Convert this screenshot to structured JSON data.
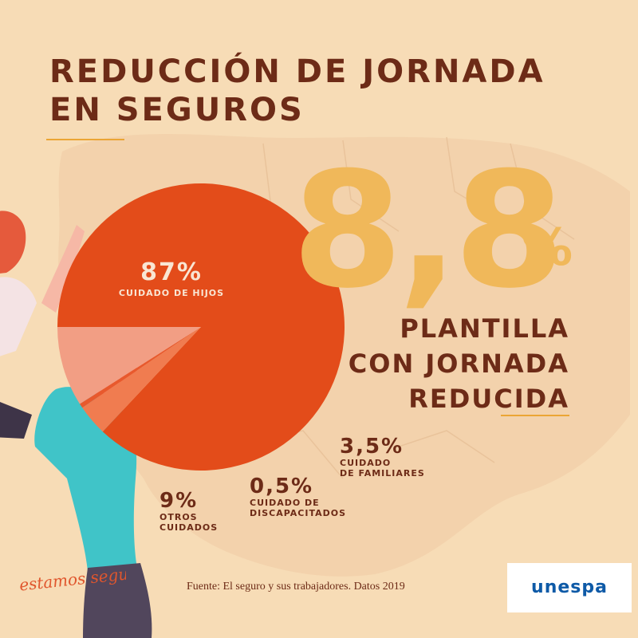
{
  "title": {
    "line1": "REDUCCIÓN DE JORNADA",
    "line2": "EN SEGUROS"
  },
  "headline": {
    "value": "8,8",
    "unit": "%",
    "line1": "PLANTILLA",
    "line2": "CON JORNADA",
    "line3": "REDUCIDA"
  },
  "labels": {
    "hijos": {
      "value": "87%",
      "name": "CUIDADO DE HIJOS"
    },
    "otros": {
      "value": "9%",
      "name1": "OTROS",
      "name2": "CUIDADOS"
    },
    "discap": {
      "value": "0,5%",
      "name1": "CUIDADO DE",
      "name2": "DISCAPACITADOS"
    },
    "familiares": {
      "value": "3,5%",
      "name1": "CUIDADO",
      "name2": "DE FAMILIARES"
    }
  },
  "source": "Fuente: El seguro y sus trabajadores. Datos 2019",
  "brand": {
    "tagline": "estamos seguros",
    "logo": "unespa"
  },
  "colors": {
    "background": "#f7dcb6",
    "map": "#f3d2ac",
    "title": "#6d2b17",
    "accent": "#f0b85a",
    "slice_hijos": "#e34c1a",
    "slice_otros": "#f29e84",
    "slice_discap": "#e8592d",
    "slice_familiares": "#f07c50"
  },
  "chart_data": {
    "type": "pie",
    "start_angle_deg": 180,
    "direction": "clockwise",
    "slices": [
      {
        "label": "CUIDADO DE HIJOS",
        "value": 87,
        "color": "#e34c1a"
      },
      {
        "label": "CUIDADO DE FAMILIARES",
        "value": 3.5,
        "color": "#f07c50"
      },
      {
        "label": "CUIDADO DE DISCAPACITADOS",
        "value": 0.5,
        "color": "#e8592d"
      },
      {
        "label": "OTROS CUIDADOS",
        "value": 9,
        "color": "#f29e84"
      }
    ]
  }
}
